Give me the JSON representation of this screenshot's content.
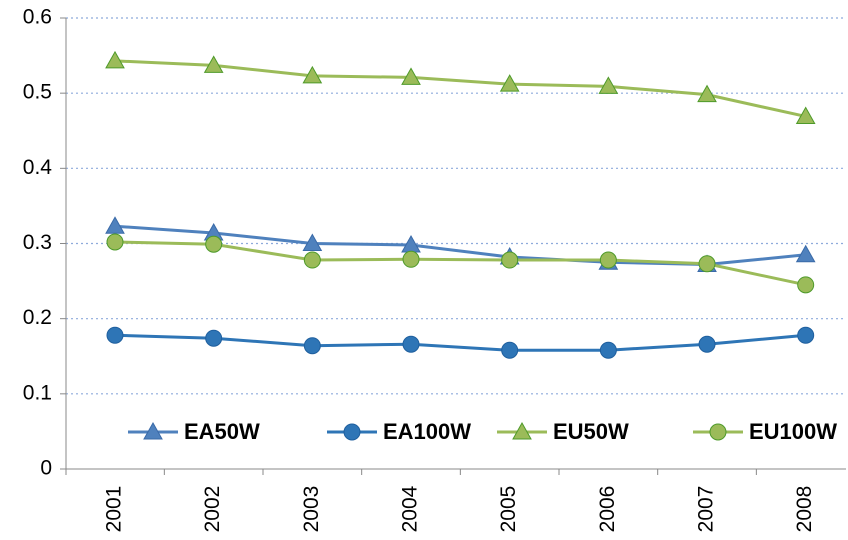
{
  "chart_data": {
    "type": "line",
    "categories": [
      "2001",
      "2002",
      "2003",
      "2004",
      "2005",
      "2006",
      "2007",
      "2008"
    ],
    "series": [
      {
        "name": "EA50W",
        "color": "#4f81bd",
        "marker": "triangle",
        "values": [
          0.323,
          0.314,
          0.3,
          0.298,
          0.282,
          0.275,
          0.272,
          0.285
        ]
      },
      {
        "name": "EA100W",
        "color": "#2e75b6",
        "marker": "circle",
        "values": [
          0.178,
          0.174,
          0.164,
          0.166,
          0.158,
          0.158,
          0.166,
          0.178
        ]
      },
      {
        "name": "EU50W",
        "color": "#9bbb59",
        "marker": "triangle",
        "values": [
          0.543,
          0.537,
          0.523,
          0.521,
          0.512,
          0.509,
          0.498,
          0.469
        ]
      },
      {
        "name": "EU100W",
        "color": "#9bbb59",
        "marker": "circle",
        "values": [
          0.302,
          0.299,
          0.278,
          0.279,
          0.278,
          0.278,
          0.273,
          0.245
        ]
      }
    ],
    "ylim": [
      0,
      0.6
    ],
    "yticks": [
      0,
      0.1,
      0.2,
      0.3,
      0.4,
      0.5,
      0.6
    ],
    "grid": true
  }
}
